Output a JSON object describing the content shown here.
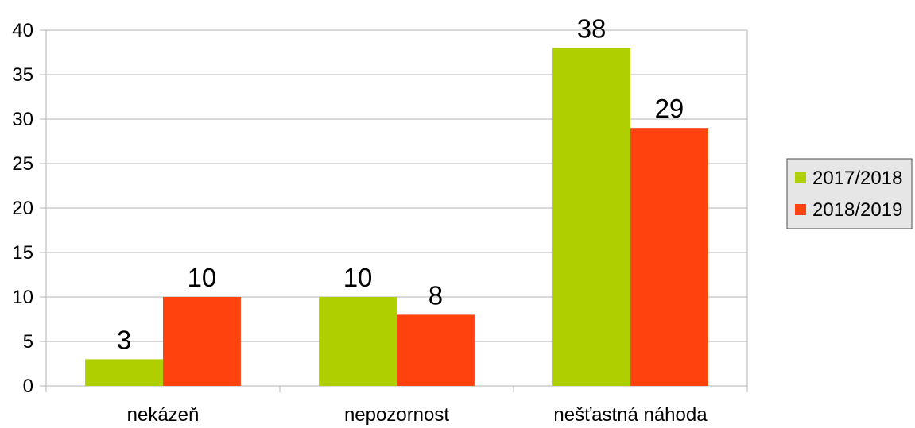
{
  "chart_data": {
    "type": "bar",
    "title": "",
    "xlabel": "",
    "ylabel": "",
    "categories": [
      "nekázeň",
      "nepozornost",
      "nešťastná náhoda"
    ],
    "series": [
      {
        "name": "2017/2018",
        "color": "#b0cf00",
        "values": [
          3,
          10,
          38
        ]
      },
      {
        "name": "2018/2019",
        "color": "#ff420e",
        "values": [
          10,
          8,
          29
        ]
      }
    ],
    "ylim": [
      0,
      40
    ],
    "yticks": [
      0,
      5,
      10,
      15,
      20,
      25,
      30,
      35,
      40
    ],
    "grid": true,
    "data_labels": true,
    "legend_position": "right"
  }
}
